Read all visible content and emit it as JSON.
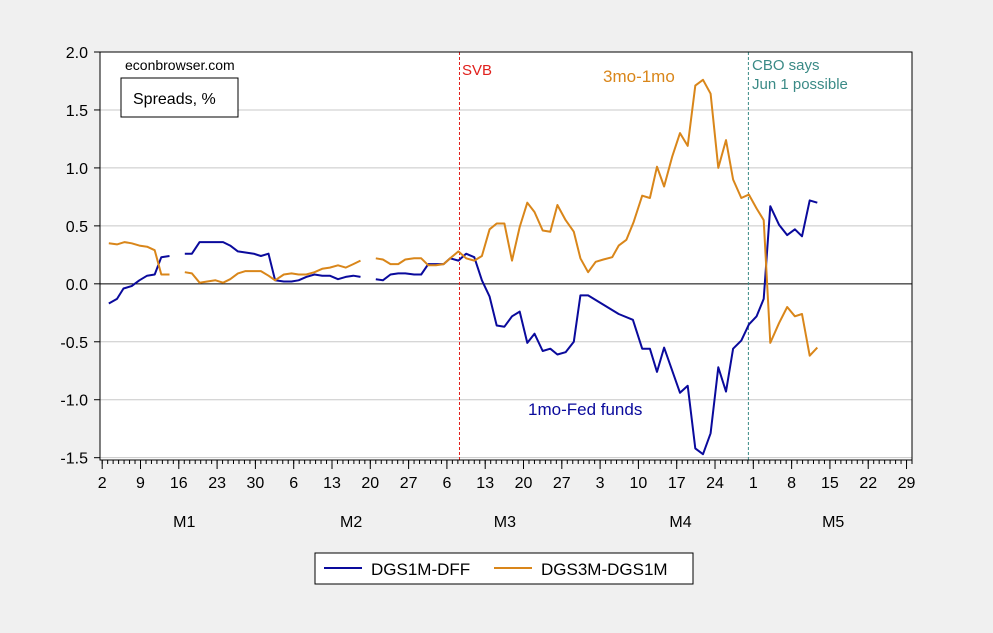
{
  "chart_data": {
    "type": "line",
    "title": "Spreads, %",
    "source": "econbrowser.com",
    "xlabel": "",
    "ylabel": "",
    "x_units": "day of year",
    "xlim": [
      1.6,
      150
    ],
    "ylim": [
      -1.52,
      2.0
    ],
    "grid": true,
    "legend_placement": "bottom-center",
    "yticks": [
      -1.5,
      -1.0,
      -0.5,
      0.0,
      0.5,
      1.0,
      1.5,
      2.0
    ],
    "ytick_labels": [
      "-1.5",
      "-1.0",
      "-0.5",
      "0.0",
      "0.5",
      "1.0",
      "1.5",
      "2.0"
    ],
    "xticks": [
      2,
      9,
      16,
      23,
      30,
      37,
      44,
      51,
      58,
      65,
      72,
      79,
      86,
      93,
      100,
      107,
      114,
      121,
      128,
      135,
      142,
      149
    ],
    "xtick_labels": [
      "2",
      "9",
      "16",
      "23",
      "30",
      "6",
      "13",
      "20",
      "27",
      "6",
      "13",
      "20",
      "27",
      "3",
      "10",
      "17",
      "24",
      "1",
      "8",
      "15",
      "22",
      "29"
    ],
    "month_labels": [
      {
        "label": "M1",
        "x": 17
      },
      {
        "label": "M2",
        "x": 47.5
      },
      {
        "label": "M3",
        "x": 75.6
      },
      {
        "label": "M4",
        "x": 107.7
      },
      {
        "label": "M5",
        "x": 135.6
      }
    ],
    "vlines": [
      {
        "label": "SVB",
        "x": 67.3,
        "color": "#e0201c"
      },
      {
        "label": "CBO says Jun 1 possible",
        "line1": "CBO says",
        "line2": "Jun 1 possible",
        "x": 120.1,
        "color": "#3a8a86"
      }
    ],
    "annotations": {
      "orange": "3mo-1mo",
      "blue": "1mo-Fed funds"
    },
    "series": [
      {
        "name": "DGS1M-DFF",
        "color": "#0a0a9c",
        "points": [
          [
            3.2,
            -0.17
          ],
          [
            4.7,
            -0.13
          ],
          [
            5.9,
            -0.04
          ],
          [
            7.4,
            -0.02
          ],
          [
            8.8,
            0.03
          ],
          [
            10.2,
            0.07
          ],
          [
            11.6,
            0.08
          ],
          [
            12.8,
            0.23
          ],
          [
            14.3,
            0.24
          ],
          null,
          [
            17.1,
            0.26
          ],
          [
            18.4,
            0.26
          ],
          [
            19.8,
            0.36
          ],
          [
            21.2,
            0.36
          ],
          [
            22.7,
            0.36
          ],
          [
            24.1,
            0.36
          ],
          [
            25.4,
            0.33
          ],
          [
            26.8,
            0.28
          ],
          [
            28.2,
            0.27
          ],
          [
            29.7,
            0.26
          ],
          [
            31.0,
            0.24
          ],
          [
            32.4,
            0.26
          ],
          [
            33.6,
            0.03
          ],
          [
            35.2,
            0.02
          ],
          [
            36.6,
            0.02
          ],
          [
            37.9,
            0.03
          ],
          [
            39.3,
            0.06
          ],
          [
            40.8,
            0.08
          ],
          [
            42.2,
            0.07
          ],
          [
            43.6,
            0.07
          ],
          [
            45.1,
            0.04
          ],
          [
            46.5,
            0.06
          ],
          [
            47.9,
            0.07
          ],
          [
            49.2,
            0.06
          ],
          null,
          [
            52.0,
            0.04
          ],
          [
            53.3,
            0.03
          ],
          [
            54.7,
            0.08
          ],
          [
            56.1,
            0.09
          ],
          [
            57.4,
            0.09
          ],
          [
            59.0,
            0.08
          ],
          [
            60.3,
            0.08
          ],
          [
            61.6,
            0.17
          ],
          [
            63.0,
            0.17
          ],
          [
            64.4,
            0.17
          ],
          [
            65.6,
            0.22
          ],
          [
            67.1,
            0.2
          ],
          [
            68.5,
            0.26
          ],
          [
            70.0,
            0.23
          ],
          [
            71.4,
            0.03
          ],
          [
            72.8,
            -0.11
          ],
          [
            74.1,
            -0.36
          ],
          [
            75.5,
            -0.37
          ],
          [
            76.9,
            -0.28
          ],
          [
            78.3,
            -0.24
          ],
          [
            79.7,
            -0.51
          ],
          [
            81.0,
            -0.43
          ],
          [
            82.5,
            -0.58
          ],
          [
            83.9,
            -0.56
          ],
          [
            85.2,
            -0.61
          ],
          [
            86.7,
            -0.59
          ],
          [
            88.2,
            -0.5
          ],
          [
            89.4,
            -0.1
          ],
          [
            90.8,
            -0.1
          ],
          [
            96.4,
            -0.26
          ],
          [
            99.0,
            -0.31
          ],
          [
            100.7,
            -0.56
          ],
          [
            102.1,
            -0.56
          ],
          [
            103.4,
            -0.76
          ],
          [
            104.7,
            -0.55
          ],
          [
            107.6,
            -0.94
          ],
          [
            109.0,
            -0.88
          ],
          [
            110.4,
            -1.42
          ],
          [
            111.8,
            -1.47
          ],
          [
            113.2,
            -1.29
          ],
          [
            114.6,
            -0.72
          ],
          [
            116.0,
            -0.93
          ],
          [
            117.3,
            -0.56
          ],
          [
            118.8,
            -0.49
          ],
          [
            120.2,
            -0.35
          ],
          [
            121.6,
            -0.28
          ],
          [
            122.9,
            -0.13
          ],
          [
            124.1,
            0.67
          ],
          [
            125.7,
            0.51
          ],
          [
            127.2,
            0.42
          ],
          [
            128.6,
            0.47
          ],
          [
            129.9,
            0.41
          ],
          [
            131.3,
            0.72
          ],
          [
            132.7,
            0.7
          ]
        ]
      },
      {
        "name": "DGS3M-DGS1M",
        "color": "#d9861a",
        "points": [
          [
            3.2,
            0.35
          ],
          [
            4.7,
            0.34
          ],
          [
            6.1,
            0.36
          ],
          [
            7.4,
            0.35
          ],
          [
            8.8,
            0.33
          ],
          [
            10.2,
            0.32
          ],
          [
            11.6,
            0.29
          ],
          [
            12.8,
            0.08
          ],
          [
            14.3,
            0.08
          ],
          null,
          [
            17.1,
            0.1
          ],
          [
            18.4,
            0.09
          ],
          [
            19.8,
            0.01
          ],
          [
            21.2,
            0.02
          ],
          [
            22.7,
            0.03
          ],
          [
            24.1,
            0.01
          ],
          [
            25.4,
            0.04
          ],
          [
            26.8,
            0.09
          ],
          [
            28.2,
            0.11
          ],
          [
            29.7,
            0.11
          ],
          [
            31.0,
            0.11
          ],
          [
            32.4,
            0.07
          ],
          [
            33.6,
            0.03
          ],
          [
            35.2,
            0.08
          ],
          [
            36.6,
            0.09
          ],
          [
            37.9,
            0.08
          ],
          [
            39.3,
            0.08
          ],
          [
            40.8,
            0.1
          ],
          [
            42.2,
            0.13
          ],
          [
            43.6,
            0.14
          ],
          [
            45.1,
            0.16
          ],
          [
            46.5,
            0.14
          ],
          [
            47.9,
            0.17
          ],
          [
            49.2,
            0.2
          ],
          null,
          [
            52.0,
            0.22
          ],
          [
            53.3,
            0.21
          ],
          [
            54.7,
            0.17
          ],
          [
            56.1,
            0.17
          ],
          [
            57.4,
            0.21
          ],
          [
            59.0,
            0.22
          ],
          [
            60.3,
            0.22
          ],
          [
            61.6,
            0.16
          ],
          [
            63.0,
            0.16
          ],
          [
            64.4,
            0.17
          ],
          [
            65.6,
            0.22
          ],
          [
            67.1,
            0.28
          ],
          [
            68.5,
            0.22
          ],
          [
            70.0,
            0.2
          ],
          [
            71.4,
            0.24
          ],
          [
            72.8,
            0.47
          ],
          [
            74.1,
            0.52
          ],
          [
            75.5,
            0.52
          ],
          [
            76.9,
            0.2
          ],
          [
            78.3,
            0.49
          ],
          [
            79.7,
            0.7
          ],
          [
            81.0,
            0.62
          ],
          [
            82.5,
            0.46
          ],
          [
            83.9,
            0.45
          ],
          [
            85.2,
            0.68
          ],
          [
            86.7,
            0.55
          ],
          [
            88.2,
            0.45
          ],
          [
            89.4,
            0.22
          ],
          [
            90.8,
            0.1
          ],
          [
            92.2,
            0.19
          ],
          [
            93.6,
            0.21
          ],
          [
            95.2,
            0.23
          ],
          [
            96.4,
            0.33
          ],
          [
            97.8,
            0.38
          ],
          [
            99.1,
            0.53
          ],
          [
            100.7,
            0.76
          ],
          [
            102.1,
            0.74
          ],
          [
            103.4,
            1.01
          ],
          [
            104.7,
            0.84
          ],
          [
            106.2,
            1.1
          ],
          [
            107.6,
            1.3
          ],
          [
            109.0,
            1.19
          ],
          [
            110.4,
            1.71
          ],
          [
            111.8,
            1.76
          ],
          [
            113.2,
            1.64
          ],
          [
            114.6,
            1.0
          ],
          [
            116.0,
            1.24
          ],
          [
            117.3,
            0.9
          ],
          [
            118.8,
            0.74
          ],
          [
            120.2,
            0.77
          ],
          [
            121.6,
            0.65
          ],
          [
            122.9,
            0.55
          ],
          [
            124.1,
            -0.51
          ],
          [
            125.7,
            -0.34
          ],
          [
            127.2,
            -0.2
          ],
          [
            128.6,
            -0.28
          ],
          [
            129.9,
            -0.26
          ],
          [
            131.3,
            -0.62
          ],
          [
            132.7,
            -0.55
          ]
        ]
      }
    ]
  }
}
